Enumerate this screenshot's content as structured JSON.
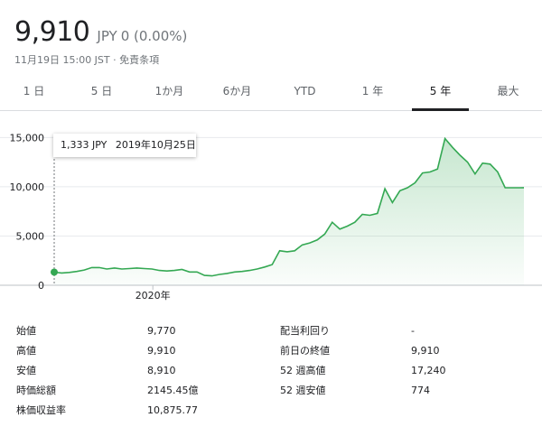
{
  "header": {
    "price": "9,910",
    "currency": "JPY",
    "change": "0 (0.00%)",
    "timestamp": "11月19日 15:00 JST · 免責条項"
  },
  "tabs": [
    {
      "label": "1 日"
    },
    {
      "label": "5 日"
    },
    {
      "label": "1か月"
    },
    {
      "label": "6か月"
    },
    {
      "label": "YTD"
    },
    {
      "label": "1 年"
    },
    {
      "label": "5 年",
      "active": true
    },
    {
      "label": "最大"
    }
  ],
  "tooltip": {
    "price": "1,333 JPY",
    "date": "2019年10月25日"
  },
  "chart_data": {
    "type": "area",
    "y_ticks": [
      "15,000",
      "10,000",
      "5,000",
      "0"
    ],
    "y_tick_values": [
      15000,
      10000,
      5000,
      0
    ],
    "x_tick_labels": [
      "2020年"
    ],
    "x_tick_positions": [
      0.21
    ],
    "ylim": [
      0,
      16500
    ],
    "x": [
      0,
      0.016,
      0.032,
      0.048,
      0.064,
      0.08,
      0.096,
      0.112,
      0.128,
      0.144,
      0.16,
      0.176,
      0.192,
      0.208,
      0.224,
      0.24,
      0.256,
      0.272,
      0.288,
      0.304,
      0.32,
      0.336,
      0.352,
      0.368,
      0.384,
      0.4,
      0.416,
      0.432,
      0.448,
      0.464,
      0.48,
      0.496,
      0.512,
      0.528,
      0.544,
      0.56,
      0.576,
      0.592,
      0.608,
      0.624,
      0.64,
      0.656,
      0.672,
      0.688,
      0.704,
      0.72,
      0.736,
      0.752,
      0.768,
      0.784,
      0.8,
      0.816,
      0.832,
      0.848,
      0.864,
      0.88,
      0.896,
      0.912,
      0.928,
      0.944,
      0.96,
      0.976,
      0.992,
      1.0
    ],
    "values": [
      1333,
      1250,
      1300,
      1400,
      1550,
      1800,
      1800,
      1650,
      1750,
      1650,
      1700,
      1750,
      1700,
      1650,
      1500,
      1450,
      1500,
      1600,
      1350,
      1350,
      1000,
      950,
      1100,
      1200,
      1350,
      1400,
      1500,
      1650,
      1850,
      2100,
      3500,
      3400,
      3500,
      4100,
      4300,
      4600,
      5200,
      6400,
      5700,
      6000,
      6400,
      7200,
      7100,
      7300,
      9800,
      8400,
      9600,
      9900,
      10400,
      11400,
      11500,
      11800,
      14900,
      14000,
      13200,
      12500,
      11300,
      12400,
      12300,
      11500,
      9900,
      9900,
      9900,
      9910
    ],
    "line_color": "#34a853",
    "fill_color": "#e6f4ea",
    "grid": true
  },
  "stats": {
    "left": [
      {
        "label": "始値",
        "value": "9,770"
      },
      {
        "label": "高値",
        "value": "9,910"
      },
      {
        "label": "安値",
        "value": "8,910"
      },
      {
        "label": "時価総額",
        "value": "2145.45億"
      },
      {
        "label": "株価収益率",
        "value": "10,875.77"
      }
    ],
    "right": [
      {
        "label": "配当利回り",
        "value": "-"
      },
      {
        "label": "前日の終値",
        "value": "9,910"
      },
      {
        "label": "52 週高値",
        "value": "17,240"
      },
      {
        "label": "52 週安値",
        "value": "774"
      }
    ]
  }
}
